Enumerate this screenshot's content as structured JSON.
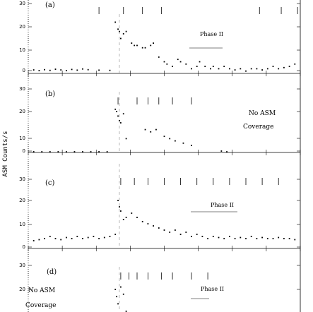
{
  "chart_data": {
    "type": "scatter",
    "ylabel": "ASM Counts/s",
    "panels": [
      {
        "label": "(a)",
        "ylim": [
          0,
          32
        ],
        "yticks": [
          0,
          10,
          20,
          30
        ],
        "annotations": [
          "Phase II"
        ],
        "markers": [
          0.26,
          0.35,
          0.42,
          0.49,
          0.85,
          0.93,
          0.99
        ],
        "dashed_vline": 0.335,
        "points": [
          [
            0.02,
            1.5
          ],
          [
            0.04,
            1.2
          ],
          [
            0.06,
            1.6
          ],
          [
            0.08,
            1.3
          ],
          [
            0.1,
            1.8
          ],
          [
            0.12,
            1.5
          ],
          [
            0.14,
            1.2
          ],
          [
            0.16,
            1.7
          ],
          [
            0.18,
            1.4
          ],
          [
            0.2,
            1.9
          ],
          [
            0.22,
            1.6
          ],
          [
            0.26,
            1.4
          ],
          [
            0.3,
            1.3
          ],
          [
            0.32,
            22
          ],
          [
            0.33,
            19
          ],
          [
            0.335,
            18
          ],
          [
            0.34,
            15
          ],
          [
            0.35,
            17
          ],
          [
            0.36,
            18
          ],
          [
            0.38,
            13
          ],
          [
            0.39,
            12
          ],
          [
            0.4,
            12
          ],
          [
            0.42,
            11
          ],
          [
            0.43,
            11
          ],
          [
            0.45,
            12
          ],
          [
            0.46,
            13
          ],
          [
            0.48,
            7
          ],
          [
            0.5,
            5
          ],
          [
            0.51,
            4
          ],
          [
            0.53,
            3
          ],
          [
            0.55,
            6
          ],
          [
            0.56,
            5
          ],
          [
            0.58,
            4
          ],
          [
            0.6,
            2
          ],
          [
            0.62,
            3
          ],
          [
            0.63,
            5
          ],
          [
            0.65,
            3
          ],
          [
            0.67,
            2
          ],
          [
            0.68,
            3
          ],
          [
            0.7,
            2
          ],
          [
            0.72,
            3
          ],
          [
            0.74,
            2
          ],
          [
            0.76,
            1.5
          ],
          [
            0.78,
            2
          ],
          [
            0.8,
            1
          ],
          [
            0.82,
            2
          ],
          [
            0.84,
            2
          ],
          [
            0.86,
            1.5
          ],
          [
            0.88,
            2
          ],
          [
            0.9,
            3
          ],
          [
            0.92,
            2
          ],
          [
            0.94,
            2.5
          ],
          [
            0.96,
            3
          ],
          [
            0.98,
            4
          ]
        ]
      },
      {
        "label": "(b)",
        "ylim": [
          0,
          32
        ],
        "yticks": [
          0,
          10,
          20,
          30
        ],
        "annotations": [
          "No ASM",
          "Coverage"
        ],
        "markers": [
          0.33,
          0.4,
          0.44,
          0.48,
          0.53,
          0.6
        ],
        "dashed_vline": 0.335,
        "points": [
          [
            0.02,
            1.5
          ],
          [
            0.05,
            1.8
          ],
          [
            0.08,
            1.4
          ],
          [
            0.11,
            2
          ],
          [
            0.14,
            1.6
          ],
          [
            0.17,
            1.9
          ],
          [
            0.2,
            1.5
          ],
          [
            0.23,
            2.1
          ],
          [
            0.26,
            1.7
          ],
          [
            0.29,
            2
          ],
          [
            0.32,
            21
          ],
          [
            0.325,
            20
          ],
          [
            0.33,
            18
          ],
          [
            0.335,
            16
          ],
          [
            0.34,
            15
          ],
          [
            0.35,
            19
          ],
          [
            0.36,
            8
          ],
          [
            0.43,
            12
          ],
          [
            0.45,
            11
          ],
          [
            0.47,
            12
          ],
          [
            0.5,
            9
          ],
          [
            0.52,
            8
          ],
          [
            0.54,
            7
          ],
          [
            0.57,
            6
          ],
          [
            0.6,
            5
          ],
          [
            0.71,
            2.5
          ],
          [
            0.73,
            2
          ]
        ]
      },
      {
        "label": "(c)",
        "ylim": [
          0,
          32
        ],
        "yticks": [
          0,
          10,
          20,
          30
        ],
        "annotations": [
          "Phase II"
        ],
        "markers": [
          0.34,
          0.39,
          0.44,
          0.5,
          0.56,
          0.62,
          0.68,
          0.74,
          0.8,
          0.86,
          0.92
        ],
        "dashed_vline": 0.335,
        "points": [
          [
            0.02,
            1
          ],
          [
            0.04,
            1.5
          ],
          [
            0.06,
            2
          ],
          [
            0.08,
            3
          ],
          [
            0.1,
            2
          ],
          [
            0.12,
            1.5
          ],
          [
            0.14,
            2.5
          ],
          [
            0.16,
            2
          ],
          [
            0.18,
            3
          ],
          [
            0.2,
            2
          ],
          [
            0.22,
            2.5
          ],
          [
            0.24,
            3
          ],
          [
            0.26,
            2
          ],
          [
            0.28,
            2.5
          ],
          [
            0.3,
            3
          ],
          [
            0.32,
            4
          ],
          [
            0.33,
            20
          ],
          [
            0.335,
            17
          ],
          [
            0.34,
            15
          ],
          [
            0.35,
            11
          ],
          [
            0.36,
            12
          ],
          [
            0.38,
            14
          ],
          [
            0.4,
            12
          ],
          [
            0.42,
            10
          ],
          [
            0.44,
            9
          ],
          [
            0.46,
            8
          ],
          [
            0.48,
            7
          ],
          [
            0.5,
            6
          ],
          [
            0.52,
            5
          ],
          [
            0.54,
            6
          ],
          [
            0.56,
            4
          ],
          [
            0.58,
            5
          ],
          [
            0.6,
            3
          ],
          [
            0.62,
            4
          ],
          [
            0.64,
            3
          ],
          [
            0.66,
            2
          ],
          [
            0.68,
            3
          ],
          [
            0.7,
            2.5
          ],
          [
            0.72,
            2
          ],
          [
            0.74,
            3
          ],
          [
            0.76,
            2
          ],
          [
            0.78,
            2.5
          ],
          [
            0.8,
            2
          ],
          [
            0.82,
            3
          ],
          [
            0.84,
            2
          ],
          [
            0.86,
            2.5
          ],
          [
            0.88,
            2
          ],
          [
            0.9,
            2
          ],
          [
            0.92,
            2.5
          ],
          [
            0.94,
            2
          ],
          [
            0.96,
            2
          ],
          [
            0.98,
            1.5
          ]
        ]
      },
      {
        "label": "(d)",
        "ylim": [
          0,
          32
        ],
        "yticks": [
          20,
          30
        ],
        "annotations": [
          "No ASM",
          "Coverage",
          "Phase II"
        ],
        "markers": [
          0.34,
          0.37,
          0.4,
          0.44,
          0.49,
          0.53,
          0.6,
          0.66
        ],
        "dashed_vline": 0.335,
        "points": [
          [
            0.32,
            20
          ],
          [
            0.325,
            17
          ],
          [
            0.33,
            14
          ],
          [
            0.34,
            21
          ],
          [
            0.35,
            18
          ],
          [
            0.36,
            9
          ]
        ]
      }
    ]
  }
}
